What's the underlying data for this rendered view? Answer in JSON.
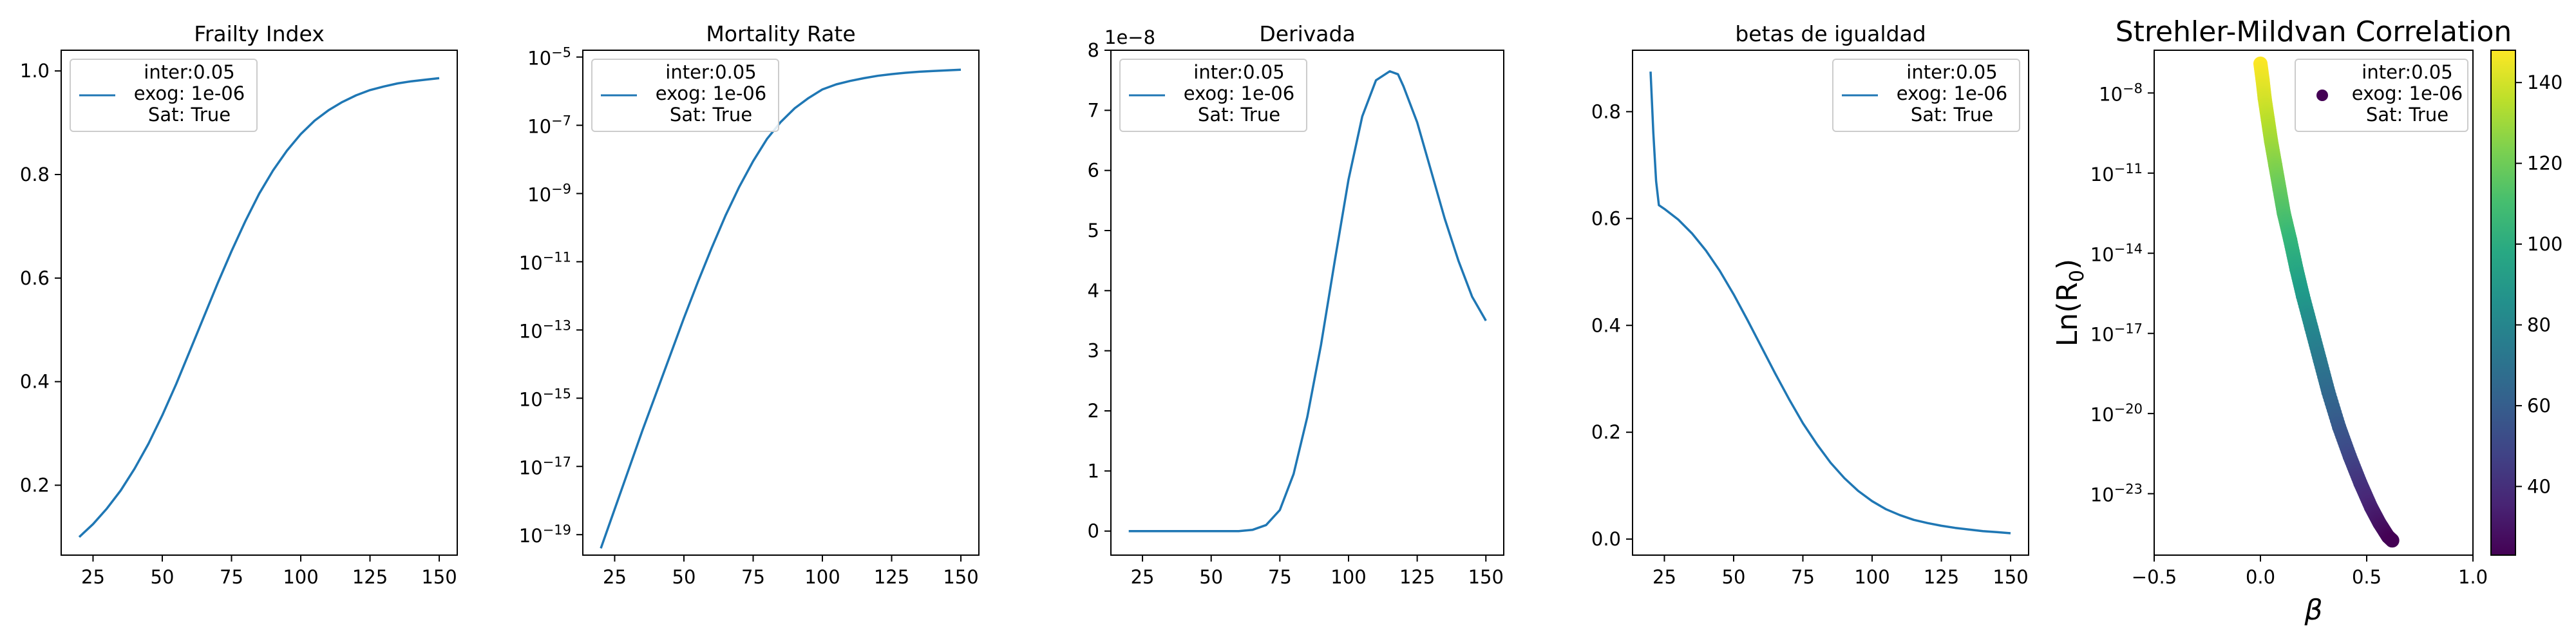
{
  "figure": {
    "accent_color": "#1f77b4",
    "legend": {
      "line1": "inter:0.05",
      "line2": "exog: 1e-06",
      "line3": "Sat: True"
    }
  },
  "chart_data": [
    {
      "type": "line",
      "title": "Frailty Index",
      "xlabel": "",
      "ylabel": "",
      "xlim": [
        13.5,
        156.5
      ],
      "ylim": [
        0.065,
        1.04
      ],
      "xticks": [
        "25",
        "50",
        "75",
        "100",
        "125",
        "150"
      ],
      "yticks": [
        "0.2",
        "0.4",
        "0.6",
        "0.8",
        "1.0"
      ],
      "legend_position": "upper-left",
      "series": [
        {
          "name": "inter:0.05\n exog: 1e-06\n Sat: True",
          "x": [
            20,
            25,
            30,
            35,
            40,
            45,
            50,
            55,
            60,
            65,
            70,
            75,
            80,
            85,
            90,
            95,
            100,
            105,
            110,
            115,
            120,
            125,
            130,
            135,
            140,
            145,
            150
          ],
          "y": [
            0.1,
            0.125,
            0.155,
            0.19,
            0.232,
            0.28,
            0.335,
            0.395,
            0.46,
            0.525,
            0.59,
            0.652,
            0.71,
            0.763,
            0.808,
            0.846,
            0.878,
            0.904,
            0.924,
            0.94,
            0.953,
            0.963,
            0.97,
            0.976,
            0.98,
            0.983,
            0.986
          ]
        }
      ]
    },
    {
      "type": "line",
      "title": "Mortality Rate",
      "xlabel": "",
      "ylabel": "",
      "xlim": [
        13.5,
        156.5
      ],
      "ylim": [
        -19.6,
        -4.8
      ],
      "yscale": "log",
      "xticks": [
        "25",
        "50",
        "75",
        "100",
        "125",
        "150"
      ],
      "yticks": [
        {
          "base": "10",
          "exp": "−19"
        },
        {
          "base": "10",
          "exp": "−17"
        },
        {
          "base": "10",
          "exp": "−15"
        },
        {
          "base": "10",
          "exp": "−13"
        },
        {
          "base": "10",
          "exp": "−11"
        },
        {
          "base": "10",
          "exp": "−9"
        },
        {
          "base": "10",
          "exp": "−7"
        },
        {
          "base": "10",
          "exp": "−5"
        }
      ],
      "legend_position": "upper-left",
      "series": [
        {
          "name": "inter:0.05\n exog: 1e-06\n Sat: True",
          "x": [
            20,
            25,
            30,
            35,
            40,
            45,
            50,
            55,
            60,
            65,
            70,
            75,
            80,
            85,
            90,
            95,
            100,
            105,
            110,
            115,
            120,
            125,
            130,
            135,
            140,
            145,
            150
          ],
          "y": [
            -19.4,
            -18.25,
            -17.1,
            -15.95,
            -14.85,
            -13.75,
            -12.65,
            -11.6,
            -10.6,
            -9.65,
            -8.8,
            -8.05,
            -7.4,
            -6.9,
            -6.5,
            -6.2,
            -5.95,
            -5.8,
            -5.7,
            -5.62,
            -5.55,
            -5.5,
            -5.46,
            -5.43,
            -5.41,
            -5.39,
            -5.37
          ]
        }
      ]
    },
    {
      "type": "line",
      "title": "Derivada",
      "xlabel": "",
      "ylabel": "",
      "xlim": [
        13.5,
        156.5
      ],
      "ylim": [
        -0.4,
        8.0
      ],
      "offset_text": "1e−8",
      "xticks": [
        "25",
        "50",
        "75",
        "100",
        "125",
        "150"
      ],
      "yticks": [
        "0",
        "1",
        "2",
        "3",
        "4",
        "5",
        "6",
        "7",
        "8"
      ],
      "legend_position": "upper-left",
      "series": [
        {
          "name": "inter:0.05\n exog: 1e-06\n Sat: True",
          "x": [
            20,
            30,
            40,
            50,
            60,
            65,
            70,
            75,
            80,
            85,
            90,
            95,
            100,
            105,
            110,
            115,
            118,
            120,
            125,
            130,
            135,
            140,
            145,
            150
          ],
          "y": [
            0.0,
            0.0,
            0.0,
            0.0,
            0.0,
            0.02,
            0.1,
            0.35,
            0.95,
            1.9,
            3.1,
            4.5,
            5.85,
            6.9,
            7.5,
            7.65,
            7.6,
            7.4,
            6.8,
            6.0,
            5.2,
            4.5,
            3.9,
            3.5
          ]
        }
      ]
    },
    {
      "type": "line",
      "title": "betas de igualdad",
      "xlabel": "",
      "ylabel": "",
      "xlim": [
        13.5,
        156.5
      ],
      "ylim": [
        -0.03,
        0.915
      ],
      "xticks": [
        "25",
        "50",
        "75",
        "100",
        "125",
        "150"
      ],
      "yticks": [
        "0.0",
        "0.2",
        "0.4",
        "0.6",
        "0.8"
      ],
      "legend_position": "upper-right",
      "series": [
        {
          "name": "inter:0.05\n exog: 1e-06\n Sat: True",
          "x": [
            20,
            21,
            22,
            23,
            25,
            30,
            35,
            40,
            45,
            50,
            55,
            60,
            65,
            70,
            75,
            80,
            85,
            90,
            95,
            100,
            105,
            110,
            115,
            120,
            125,
            130,
            135,
            140,
            145,
            150
          ],
          "y": [
            0.875,
            0.76,
            0.67,
            0.625,
            0.618,
            0.598,
            0.572,
            0.54,
            0.502,
            0.458,
            0.41,
            0.36,
            0.31,
            0.262,
            0.217,
            0.178,
            0.143,
            0.114,
            0.09,
            0.071,
            0.056,
            0.045,
            0.036,
            0.03,
            0.025,
            0.021,
            0.018,
            0.015,
            0.013,
            0.011
          ]
        }
      ]
    },
    {
      "type": "scatter",
      "title": "Strehler-Mildvan Correlation",
      "xlabel": "β",
      "ylabel_main": "Ln(R",
      "ylabel_sub": "0",
      "ylabel_end": ")",
      "xlim": [
        -0.5,
        1.0
      ],
      "ylim": [
        -25.3,
        -6.4
      ],
      "yscale": "log",
      "xticks": [
        "−0.5",
        "0.0",
        "0.5",
        "1.0"
      ],
      "yticks": [
        {
          "base": "10",
          "exp": "−23"
        },
        {
          "base": "10",
          "exp": "−20"
        },
        {
          "base": "10",
          "exp": "−17"
        },
        {
          "base": "10",
          "exp": "−14"
        },
        {
          "base": "10",
          "exp": "−11"
        },
        {
          "base": "10",
          "exp": "−8"
        }
      ],
      "legend_position": "upper-right",
      "colorbar": {
        "min": 23,
        "max": 148,
        "ticks": [
          "40",
          "60",
          "80",
          "100",
          "120",
          "140"
        ],
        "colormap": "viridis"
      },
      "series": [
        {
          "name": "inter:0.05\n exog: 1e-06\n Sat: True",
          "points_xy_c": [
            [
              0.0,
              -6.9,
              148
            ],
            [
              0.01,
              -7.5,
              145
            ],
            [
              0.02,
              -8.2,
              141
            ],
            [
              0.035,
              -9.0,
              136
            ],
            [
              0.05,
              -9.8,
              131
            ],
            [
              0.07,
              -10.7,
              125
            ],
            [
              0.09,
              -11.6,
              119
            ],
            [
              0.11,
              -12.5,
              113
            ],
            [
              0.14,
              -13.5,
              106
            ],
            [
              0.17,
              -14.6,
              98
            ],
            [
              0.2,
              -15.6,
              91
            ],
            [
              0.24,
              -16.8,
              82
            ],
            [
              0.28,
              -18.0,
              74
            ],
            [
              0.32,
              -19.2,
              66
            ],
            [
              0.37,
              -20.5,
              58
            ],
            [
              0.42,
              -21.6,
              50
            ],
            [
              0.47,
              -22.6,
              42
            ],
            [
              0.52,
              -23.5,
              35
            ],
            [
              0.56,
              -24.1,
              30
            ],
            [
              0.6,
              -24.6,
              25
            ],
            [
              0.62,
              -24.75,
              23
            ]
          ]
        }
      ]
    }
  ]
}
